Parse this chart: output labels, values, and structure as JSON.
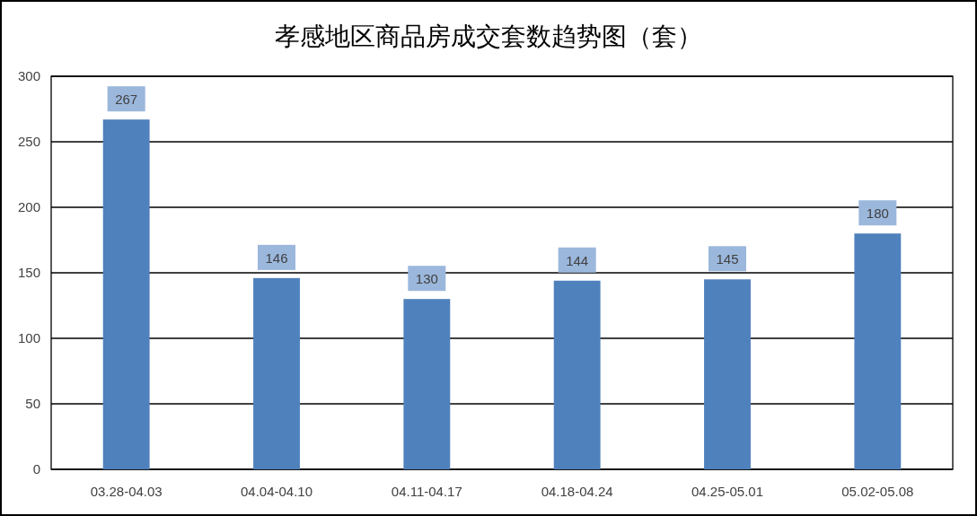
{
  "chart_data": {
    "type": "bar",
    "title": "孝感地区商品房成交套数趋势图（套）",
    "categories": [
      "03.28-04.03",
      "04.04-04.10",
      "04.11-04.17",
      "04.18-04.24",
      "04.25-05.01",
      "05.02-05.08"
    ],
    "values": [
      267,
      146,
      130,
      144,
      145,
      180
    ],
    "color": "#4f81bd",
    "ylim": [
      0,
      300
    ],
    "yticks": [
      0,
      50,
      100,
      150,
      200,
      250,
      300
    ],
    "grid": "y",
    "data_labels": true
  }
}
